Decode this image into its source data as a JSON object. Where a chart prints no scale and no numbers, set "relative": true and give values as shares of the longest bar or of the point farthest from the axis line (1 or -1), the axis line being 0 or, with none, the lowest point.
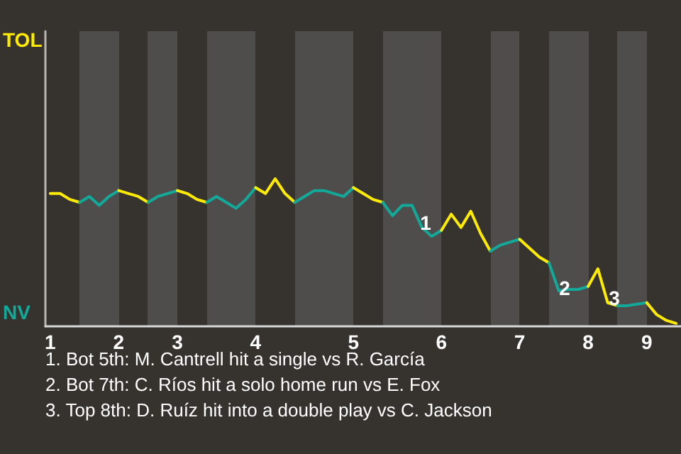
{
  "chart_data": {
    "type": "line",
    "relative": true,
    "categories": [
      "1",
      null,
      null,
      null,
      null,
      null,
      null,
      "2",
      null,
      null,
      null,
      null,
      null,
      "3",
      null,
      null,
      null,
      null,
      null,
      null,
      null,
      "4",
      null,
      null,
      null,
      null,
      null,
      null,
      null,
      null,
      null,
      "5",
      null,
      null,
      null,
      null,
      null,
      null,
      null,
      null,
      "6",
      null,
      null,
      null,
      null,
      null,
      null,
      null,
      "7",
      null,
      null,
      null,
      null,
      null,
      null,
      "8",
      null,
      null,
      null,
      null,
      null,
      "9",
      null,
      null,
      null
    ],
    "series": [
      {
        "color": "#ffeb00",
        "values": [
          0.9,
          0.9,
          0.86,
          0.84,
          null,
          null,
          null,
          null,
          null,
          null,
          null,
          null,
          null,
          null,
          null,
          null,
          null,
          null,
          null,
          null,
          null,
          null,
          null,
          null,
          null,
          null,
          null,
          null,
          null,
          null,
          null,
          null,
          null,
          null,
          null,
          null,
          null,
          null,
          null,
          null,
          null,
          null,
          null,
          null,
          null,
          null,
          null,
          null,
          null,
          null,
          null,
          null,
          null,
          null,
          null,
          null,
          null,
          null,
          null,
          null,
          null,
          null,
          null,
          null,
          null
        ]
      },
      {
        "color": "#12a99a",
        "values": [
          null,
          null,
          null,
          0.84,
          0.88,
          0.82,
          0.88,
          0.92,
          null,
          null,
          null,
          null,
          null,
          null,
          null,
          null,
          null,
          null,
          null,
          null,
          null,
          null,
          null,
          null,
          null,
          null,
          null,
          null,
          null,
          null,
          null,
          null,
          null,
          null,
          null,
          null,
          null,
          null,
          null,
          null,
          null,
          null,
          null,
          null,
          null,
          null,
          null,
          null,
          null,
          null,
          null,
          null,
          null,
          null,
          null,
          null,
          null,
          null,
          null,
          null,
          null,
          null,
          null,
          null,
          null
        ]
      },
      {
        "color": "#ffeb00",
        "values": [
          null,
          null,
          null,
          null,
          null,
          null,
          null,
          0.92,
          0.9,
          0.88,
          0.84,
          null,
          null,
          null,
          null,
          null,
          null,
          null,
          null,
          null,
          null,
          null,
          null,
          null,
          null,
          null,
          null,
          null,
          null,
          null,
          null,
          null,
          null,
          null,
          null,
          null,
          null,
          null,
          null,
          null,
          null,
          null,
          null,
          null,
          null,
          null,
          null,
          null,
          null,
          null,
          null,
          null,
          null,
          null,
          null,
          null,
          null,
          null,
          null,
          null,
          null,
          null,
          null,
          null,
          null
        ]
      },
      {
        "color": "#12a99a",
        "values": [
          null,
          null,
          null,
          null,
          null,
          null,
          null,
          null,
          null,
          null,
          0.84,
          0.88,
          0.9,
          0.92,
          null,
          null,
          null,
          null,
          null,
          null,
          null,
          null,
          null,
          null,
          null,
          null,
          null,
          null,
          null,
          null,
          null,
          null,
          null,
          null,
          null,
          null,
          null,
          null,
          null,
          null,
          null,
          null,
          null,
          null,
          null,
          null,
          null,
          null,
          null,
          null,
          null,
          null,
          null,
          null,
          null,
          null,
          null,
          null,
          null,
          null,
          null,
          null,
          null,
          null,
          null
        ]
      },
      {
        "color": "#ffeb00",
        "values": [
          null,
          null,
          null,
          null,
          null,
          null,
          null,
          null,
          null,
          null,
          null,
          null,
          null,
          0.92,
          0.9,
          0.86,
          0.84,
          null,
          null,
          null,
          null,
          null,
          null,
          null,
          null,
          null,
          null,
          null,
          null,
          null,
          null,
          null,
          null,
          null,
          null,
          null,
          null,
          null,
          null,
          null,
          null,
          null,
          null,
          null,
          null,
          null,
          null,
          null,
          null,
          null,
          null,
          null,
          null,
          null,
          null,
          null,
          null,
          null,
          null,
          null,
          null,
          null,
          null,
          null,
          null
        ]
      },
      {
        "color": "#12a99a",
        "values": [
          null,
          null,
          null,
          null,
          null,
          null,
          null,
          null,
          null,
          null,
          null,
          null,
          null,
          null,
          null,
          null,
          0.84,
          0.88,
          0.84,
          0.8,
          0.86,
          0.94,
          null,
          null,
          null,
          null,
          null,
          null,
          null,
          null,
          null,
          null,
          null,
          null,
          null,
          null,
          null,
          null,
          null,
          null,
          null,
          null,
          null,
          null,
          null,
          null,
          null,
          null,
          null,
          null,
          null,
          null,
          null,
          null,
          null,
          null,
          null,
          null,
          null,
          null,
          null,
          null,
          null,
          null,
          null
        ]
      },
      {
        "color": "#ffeb00",
        "values": [
          null,
          null,
          null,
          null,
          null,
          null,
          null,
          null,
          null,
          null,
          null,
          null,
          null,
          null,
          null,
          null,
          null,
          null,
          null,
          null,
          null,
          0.94,
          0.9,
          1,
          0.9,
          0.84,
          null,
          null,
          null,
          null,
          null,
          null,
          null,
          null,
          null,
          null,
          null,
          null,
          null,
          null,
          null,
          null,
          null,
          null,
          null,
          null,
          null,
          null,
          null,
          null,
          null,
          null,
          null,
          null,
          null,
          null,
          null,
          null,
          null,
          null,
          null,
          null,
          null,
          null,
          null
        ]
      },
      {
        "color": "#12a99a",
        "values": [
          null,
          null,
          null,
          null,
          null,
          null,
          null,
          null,
          null,
          null,
          null,
          null,
          null,
          null,
          null,
          null,
          null,
          null,
          null,
          null,
          null,
          null,
          null,
          null,
          null,
          0.84,
          0.88,
          0.92,
          0.92,
          0.9,
          0.88,
          0.94,
          null,
          null,
          null,
          null,
          null,
          null,
          null,
          null,
          null,
          null,
          null,
          null,
          null,
          null,
          null,
          null,
          null,
          null,
          null,
          null,
          null,
          null,
          null,
          null,
          null,
          null,
          null,
          null,
          null,
          null,
          null,
          null,
          null
        ]
      },
      {
        "color": "#ffeb00",
        "values": [
          null,
          null,
          null,
          null,
          null,
          null,
          null,
          null,
          null,
          null,
          null,
          null,
          null,
          null,
          null,
          null,
          null,
          null,
          null,
          null,
          null,
          null,
          null,
          null,
          null,
          null,
          null,
          null,
          null,
          null,
          null,
          0.94,
          0.9,
          0.86,
          0.84,
          null,
          null,
          null,
          null,
          null,
          null,
          null,
          null,
          null,
          null,
          null,
          null,
          null,
          null,
          null,
          null,
          null,
          null,
          null,
          null,
          null,
          null,
          null,
          null,
          null,
          null,
          null,
          null,
          null,
          null
        ]
      },
      {
        "color": "#12a99a",
        "values": [
          null,
          null,
          null,
          null,
          null,
          null,
          null,
          null,
          null,
          null,
          null,
          null,
          null,
          null,
          null,
          null,
          null,
          null,
          null,
          null,
          null,
          null,
          null,
          null,
          null,
          null,
          null,
          null,
          null,
          null,
          null,
          null,
          null,
          null,
          0.84,
          0.75,
          0.82,
          0.82,
          0.67,
          0.61,
          0.65,
          null,
          null,
          null,
          null,
          null,
          null,
          null,
          null,
          null,
          null,
          null,
          null,
          null,
          null,
          null,
          null,
          null,
          null,
          null,
          null,
          null,
          null,
          null,
          null
        ]
      },
      {
        "color": "#ffeb00",
        "values": [
          null,
          null,
          null,
          null,
          null,
          null,
          null,
          null,
          null,
          null,
          null,
          null,
          null,
          null,
          null,
          null,
          null,
          null,
          null,
          null,
          null,
          null,
          null,
          null,
          null,
          null,
          null,
          null,
          null,
          null,
          null,
          null,
          null,
          null,
          null,
          null,
          null,
          null,
          null,
          null,
          0.65,
          0.76,
          0.67,
          0.78,
          0.63,
          0.51,
          null,
          null,
          null,
          null,
          null,
          null,
          null,
          null,
          null,
          null,
          null,
          null,
          null,
          null,
          null,
          null,
          null,
          null,
          null
        ]
      },
      {
        "color": "#12a99a",
        "values": [
          null,
          null,
          null,
          null,
          null,
          null,
          null,
          null,
          null,
          null,
          null,
          null,
          null,
          null,
          null,
          null,
          null,
          null,
          null,
          null,
          null,
          null,
          null,
          null,
          null,
          null,
          null,
          null,
          null,
          null,
          null,
          null,
          null,
          null,
          null,
          null,
          null,
          null,
          null,
          null,
          null,
          null,
          null,
          null,
          null,
          0.51,
          0.55,
          0.57,
          0.59,
          null,
          null,
          null,
          null,
          null,
          null,
          null,
          null,
          null,
          null,
          null,
          null,
          null,
          null,
          null,
          null
        ]
      },
      {
        "color": "#ffeb00",
        "values": [
          null,
          null,
          null,
          null,
          null,
          null,
          null,
          null,
          null,
          null,
          null,
          null,
          null,
          null,
          null,
          null,
          null,
          null,
          null,
          null,
          null,
          null,
          null,
          null,
          null,
          null,
          null,
          null,
          null,
          null,
          null,
          null,
          null,
          null,
          null,
          null,
          null,
          null,
          null,
          null,
          null,
          null,
          null,
          null,
          null,
          null,
          null,
          null,
          0.59,
          0.53,
          0.47,
          0.43,
          null,
          null,
          null,
          null,
          null,
          null,
          null,
          null,
          null,
          null,
          null,
          null,
          null
        ]
      },
      {
        "color": "#12a99a",
        "values": [
          null,
          null,
          null,
          null,
          null,
          null,
          null,
          null,
          null,
          null,
          null,
          null,
          null,
          null,
          null,
          null,
          null,
          null,
          null,
          null,
          null,
          null,
          null,
          null,
          null,
          null,
          null,
          null,
          null,
          null,
          null,
          null,
          null,
          null,
          null,
          null,
          null,
          null,
          null,
          null,
          null,
          null,
          null,
          null,
          null,
          null,
          null,
          null,
          null,
          null,
          null,
          0.43,
          0.24,
          0.25,
          0.25,
          0.27,
          null,
          null,
          null,
          null,
          null,
          null,
          null,
          null,
          null
        ]
      },
      {
        "color": "#ffeb00",
        "values": [
          null,
          null,
          null,
          null,
          null,
          null,
          null,
          null,
          null,
          null,
          null,
          null,
          null,
          null,
          null,
          null,
          null,
          null,
          null,
          null,
          null,
          null,
          null,
          null,
          null,
          null,
          null,
          null,
          null,
          null,
          null,
          null,
          null,
          null,
          null,
          null,
          null,
          null,
          null,
          null,
          null,
          null,
          null,
          null,
          null,
          null,
          null,
          null,
          null,
          null,
          null,
          null,
          null,
          null,
          null,
          0.27,
          0.39,
          0.16,
          0.14,
          null,
          null,
          null,
          null,
          null,
          null
        ]
      },
      {
        "color": "#12a99a",
        "values": [
          null,
          null,
          null,
          null,
          null,
          null,
          null,
          null,
          null,
          null,
          null,
          null,
          null,
          null,
          null,
          null,
          null,
          null,
          null,
          null,
          null,
          null,
          null,
          null,
          null,
          null,
          null,
          null,
          null,
          null,
          null,
          null,
          null,
          null,
          null,
          null,
          null,
          null,
          null,
          null,
          null,
          null,
          null,
          null,
          null,
          null,
          null,
          null,
          null,
          null,
          null,
          null,
          null,
          null,
          null,
          null,
          null,
          null,
          0.14,
          0.14,
          0.15,
          0.16,
          null,
          null,
          null
        ]
      },
      {
        "color": "#ffeb00",
        "values": [
          null,
          null,
          null,
          null,
          null,
          null,
          null,
          null,
          null,
          null,
          null,
          null,
          null,
          null,
          null,
          null,
          null,
          null,
          null,
          null,
          null,
          null,
          null,
          null,
          null,
          null,
          null,
          null,
          null,
          null,
          null,
          null,
          null,
          null,
          null,
          null,
          null,
          null,
          null,
          null,
          null,
          null,
          null,
          null,
          null,
          null,
          null,
          null,
          null,
          null,
          null,
          null,
          null,
          null,
          null,
          null,
          null,
          null,
          null,
          null,
          null,
          0.16,
          0.08,
          0.04,
          0.02
        ]
      }
    ],
    "annotations": [
      "TOL",
      "NV",
      "1",
      "2",
      "3",
      "1. Bot 5th: M. Cantrell hit a single vs R. García",
      "2. Bot 7th: C. Ríos hit a solo home run vs E. Fox",
      "3. Top 8th: D. Ruíz hit into a double play vs C. Jackson"
    ]
  }
}
